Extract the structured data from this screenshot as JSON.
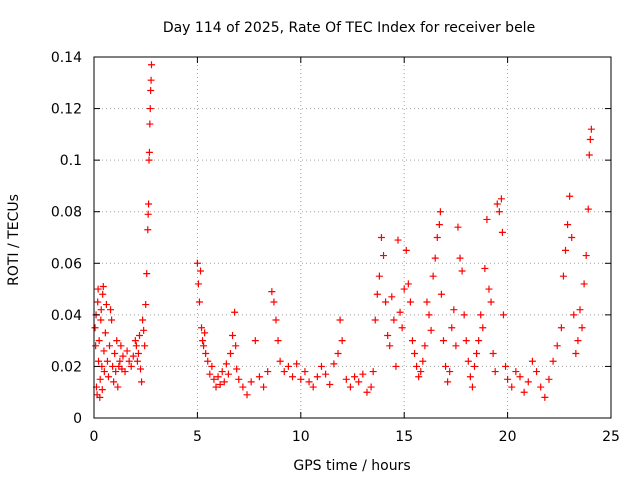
{
  "chart_data": {
    "type": "scatter",
    "title": "Day 114 of 2025, Rate Of TEC Index for receiver bele",
    "xlabel": "GPS time / hours",
    "ylabel": "ROTI / TECUs",
    "xlim": [
      0,
      25
    ],
    "ylim": [
      0,
      0.14
    ],
    "x_ticks": [
      0,
      5,
      10,
      15,
      20,
      25
    ],
    "x_tick_labels": [
      "0",
      "5",
      "10",
      "15",
      "20",
      "25"
    ],
    "y_ticks": [
      0,
      0.02,
      0.04,
      0.06,
      0.08,
      0.1,
      0.12,
      0.14
    ],
    "y_tick_labels": [
      "0",
      "0.02",
      "0.04",
      "0.06",
      "0.08",
      "0.1",
      "0.12",
      "0.14"
    ],
    "grid": true,
    "marker": "+",
    "color": "#ff0000",
    "series": [
      {
        "points": [
          [
            0.05,
            0.035
          ],
          [
            0.08,
            0.028
          ],
          [
            0.1,
            0.04
          ],
          [
            0.12,
            0.012
          ],
          [
            0.15,
            0.009
          ],
          [
            0.18,
            0.045
          ],
          [
            0.2,
            0.05
          ],
          [
            0.22,
            0.022
          ],
          [
            0.25,
            0.03
          ],
          [
            0.28,
            0.008
          ],
          [
            0.3,
            0.015
          ],
          [
            0.33,
            0.038
          ],
          [
            0.35,
            0.042
          ],
          [
            0.38,
            0.02
          ],
          [
            0.4,
            0.011
          ],
          [
            0.42,
            0.048
          ],
          [
            0.45,
            0.051
          ],
          [
            0.48,
            0.026
          ],
          [
            0.5,
            0.018
          ],
          [
            0.55,
            0.033
          ],
          [
            0.6,
            0.044
          ],
          [
            0.65,
            0.022
          ],
          [
            0.7,
            0.016
          ],
          [
            0.75,
            0.028
          ],
          [
            0.8,
            0.042
          ],
          [
            0.85,
            0.038
          ],
          [
            0.9,
            0.02
          ],
          [
            0.95,
            0.014
          ],
          [
            1.0,
            0.025
          ],
          [
            1.05,
            0.018
          ],
          [
            1.1,
            0.03
          ],
          [
            1.15,
            0.012
          ],
          [
            1.2,
            0.02
          ],
          [
            1.25,
            0.022
          ],
          [
            1.3,
            0.028
          ],
          [
            1.35,
            0.019
          ],
          [
            1.4,
            0.024
          ],
          [
            1.5,
            0.018
          ],
          [
            1.6,
            0.026
          ],
          [
            1.7,
            0.022
          ],
          [
            1.8,
            0.02
          ],
          [
            1.9,
            0.024
          ],
          [
            2.0,
            0.03
          ],
          [
            2.05,
            0.028
          ],
          [
            2.1,
            0.022
          ],
          [
            2.15,
            0.025
          ],
          [
            2.2,
            0.032
          ],
          [
            2.25,
            0.019
          ],
          [
            2.3,
            0.014
          ],
          [
            2.35,
            0.038
          ],
          [
            2.4,
            0.034
          ],
          [
            2.45,
            0.028
          ],
          [
            2.5,
            0.044
          ],
          [
            2.55,
            0.056
          ],
          [
            2.6,
            0.073
          ],
          [
            2.62,
            0.079
          ],
          [
            2.64,
            0.083
          ],
          [
            2.66,
            0.1
          ],
          [
            2.68,
            0.103
          ],
          [
            2.7,
            0.114
          ],
          [
            2.72,
            0.12
          ],
          [
            2.74,
            0.127
          ],
          [
            2.76,
            0.131
          ],
          [
            2.78,
            0.137
          ],
          [
            5.0,
            0.06
          ],
          [
            5.05,
            0.052
          ],
          [
            5.1,
            0.045
          ],
          [
            5.15,
            0.057
          ],
          [
            5.2,
            0.035
          ],
          [
            5.25,
            0.03
          ],
          [
            5.3,
            0.028
          ],
          [
            5.35,
            0.033
          ],
          [
            5.4,
            0.025
          ],
          [
            5.5,
            0.022
          ],
          [
            5.6,
            0.017
          ],
          [
            5.7,
            0.02
          ],
          [
            5.8,
            0.015
          ],
          [
            5.9,
            0.012
          ],
          [
            6.0,
            0.016
          ],
          [
            6.1,
            0.013
          ],
          [
            6.2,
            0.018
          ],
          [
            6.3,
            0.014
          ],
          [
            6.4,
            0.021
          ],
          [
            6.5,
            0.017
          ],
          [
            6.6,
            0.025
          ],
          [
            6.7,
            0.032
          ],
          [
            6.8,
            0.041
          ],
          [
            6.85,
            0.028
          ],
          [
            6.9,
            0.019
          ],
          [
            7.0,
            0.015
          ],
          [
            7.2,
            0.012
          ],
          [
            7.4,
            0.009
          ],
          [
            7.6,
            0.014
          ],
          [
            7.8,
            0.03
          ],
          [
            8.0,
            0.016
          ],
          [
            8.2,
            0.012
          ],
          [
            8.4,
            0.018
          ],
          [
            8.6,
            0.049
          ],
          [
            8.7,
            0.045
          ],
          [
            8.8,
            0.038
          ],
          [
            8.9,
            0.03
          ],
          [
            9.0,
            0.022
          ],
          [
            9.2,
            0.018
          ],
          [
            9.4,
            0.02
          ],
          [
            9.6,
            0.016
          ],
          [
            9.8,
            0.021
          ],
          [
            10.0,
            0.015
          ],
          [
            10.2,
            0.018
          ],
          [
            10.4,
            0.014
          ],
          [
            10.6,
            0.012
          ],
          [
            10.8,
            0.016
          ],
          [
            11.0,
            0.02
          ],
          [
            11.2,
            0.017
          ],
          [
            11.4,
            0.013
          ],
          [
            11.6,
            0.021
          ],
          [
            11.8,
            0.025
          ],
          [
            11.9,
            0.038
          ],
          [
            12.0,
            0.03
          ],
          [
            12.2,
            0.015
          ],
          [
            12.4,
            0.012
          ],
          [
            12.6,
            0.016
          ],
          [
            12.8,
            0.014
          ],
          [
            13.0,
            0.017
          ],
          [
            13.2,
            0.01
          ],
          [
            13.4,
            0.012
          ],
          [
            13.5,
            0.018
          ],
          [
            13.6,
            0.038
          ],
          [
            13.7,
            0.048
          ],
          [
            13.8,
            0.055
          ],
          [
            13.9,
            0.07
          ],
          [
            14.0,
            0.063
          ],
          [
            14.1,
            0.045
          ],
          [
            14.2,
            0.032
          ],
          [
            14.3,
            0.028
          ],
          [
            14.4,
            0.047
          ],
          [
            14.5,
            0.038
          ],
          [
            14.6,
            0.02
          ],
          [
            14.7,
            0.069
          ],
          [
            14.8,
            0.041
          ],
          [
            14.9,
            0.035
          ],
          [
            15.0,
            0.05
          ],
          [
            15.1,
            0.065
          ],
          [
            15.2,
            0.052
          ],
          [
            15.3,
            0.045
          ],
          [
            15.4,
            0.03
          ],
          [
            15.5,
            0.025
          ],
          [
            15.6,
            0.02
          ],
          [
            15.7,
            0.016
          ],
          [
            15.8,
            0.018
          ],
          [
            15.9,
            0.022
          ],
          [
            16.0,
            0.028
          ],
          [
            16.1,
            0.045
          ],
          [
            16.2,
            0.04
          ],
          [
            16.3,
            0.034
          ],
          [
            16.4,
            0.055
          ],
          [
            16.5,
            0.062
          ],
          [
            16.6,
            0.07
          ],
          [
            16.7,
            0.075
          ],
          [
            16.75,
            0.08
          ],
          [
            16.8,
            0.048
          ],
          [
            16.9,
            0.03
          ],
          [
            17.0,
            0.02
          ],
          [
            17.1,
            0.014
          ],
          [
            17.2,
            0.018
          ],
          [
            17.3,
            0.035
          ],
          [
            17.4,
            0.042
          ],
          [
            17.5,
            0.028
          ],
          [
            17.6,
            0.074
          ],
          [
            17.7,
            0.062
          ],
          [
            17.8,
            0.057
          ],
          [
            17.9,
            0.04
          ],
          [
            18.0,
            0.03
          ],
          [
            18.1,
            0.022
          ],
          [
            18.2,
            0.016
          ],
          [
            18.3,
            0.012
          ],
          [
            18.4,
            0.02
          ],
          [
            18.5,
            0.025
          ],
          [
            18.6,
            0.03
          ],
          [
            18.7,
            0.04
          ],
          [
            18.8,
            0.035
          ],
          [
            18.9,
            0.058
          ],
          [
            19.0,
            0.077
          ],
          [
            19.1,
            0.05
          ],
          [
            19.2,
            0.045
          ],
          [
            19.3,
            0.025
          ],
          [
            19.4,
            0.018
          ],
          [
            19.5,
            0.083
          ],
          [
            19.6,
            0.08
          ],
          [
            19.7,
            0.085
          ],
          [
            19.75,
            0.072
          ],
          [
            19.8,
            0.04
          ],
          [
            19.9,
            0.02
          ],
          [
            20.0,
            0.015
          ],
          [
            20.2,
            0.012
          ],
          [
            20.4,
            0.018
          ],
          [
            20.6,
            0.016
          ],
          [
            20.8,
            0.01
          ],
          [
            21.0,
            0.014
          ],
          [
            21.2,
            0.022
          ],
          [
            21.4,
            0.018
          ],
          [
            21.6,
            0.012
          ],
          [
            21.8,
            0.008
          ],
          [
            22.0,
            0.015
          ],
          [
            22.2,
            0.022
          ],
          [
            22.4,
            0.028
          ],
          [
            22.6,
            0.035
          ],
          [
            22.7,
            0.055
          ],
          [
            22.8,
            0.065
          ],
          [
            22.9,
            0.075
          ],
          [
            23.0,
            0.086
          ],
          [
            23.1,
            0.07
          ],
          [
            23.2,
            0.04
          ],
          [
            23.3,
            0.025
          ],
          [
            23.4,
            0.03
          ],
          [
            23.5,
            0.042
          ],
          [
            23.6,
            0.035
          ],
          [
            23.7,
            0.052
          ],
          [
            23.8,
            0.063
          ],
          [
            23.9,
            0.081
          ],
          [
            23.95,
            0.102
          ],
          [
            24.0,
            0.108
          ],
          [
            24.05,
            0.112
          ]
        ]
      }
    ]
  }
}
